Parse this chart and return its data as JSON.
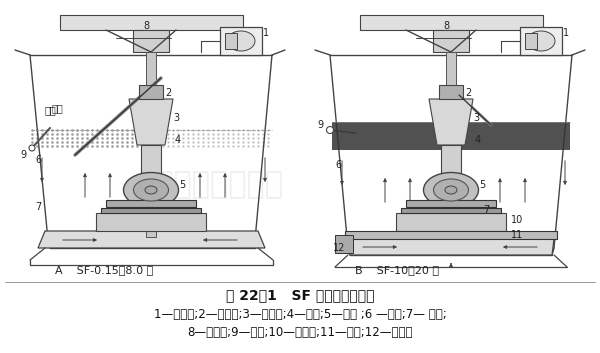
{
  "title": "图 22－1   SF 型浮选机结构图",
  "caption_line1": "1—电动机;2—吸气管;3—中心筒;4—褡体;5—叶轮 ;6 —主轴;7— 盖板;",
  "caption_line2": "8—轴承体;9—刮板;10—导流筒;11—假底;12—调节环",
  "label_A": "A    SF-0.15～8.0 型",
  "label_B": "B    SF-10～20 型",
  "title_fontsize": 10,
  "caption_fontsize": 8.5,
  "label_fontsize": 8
}
